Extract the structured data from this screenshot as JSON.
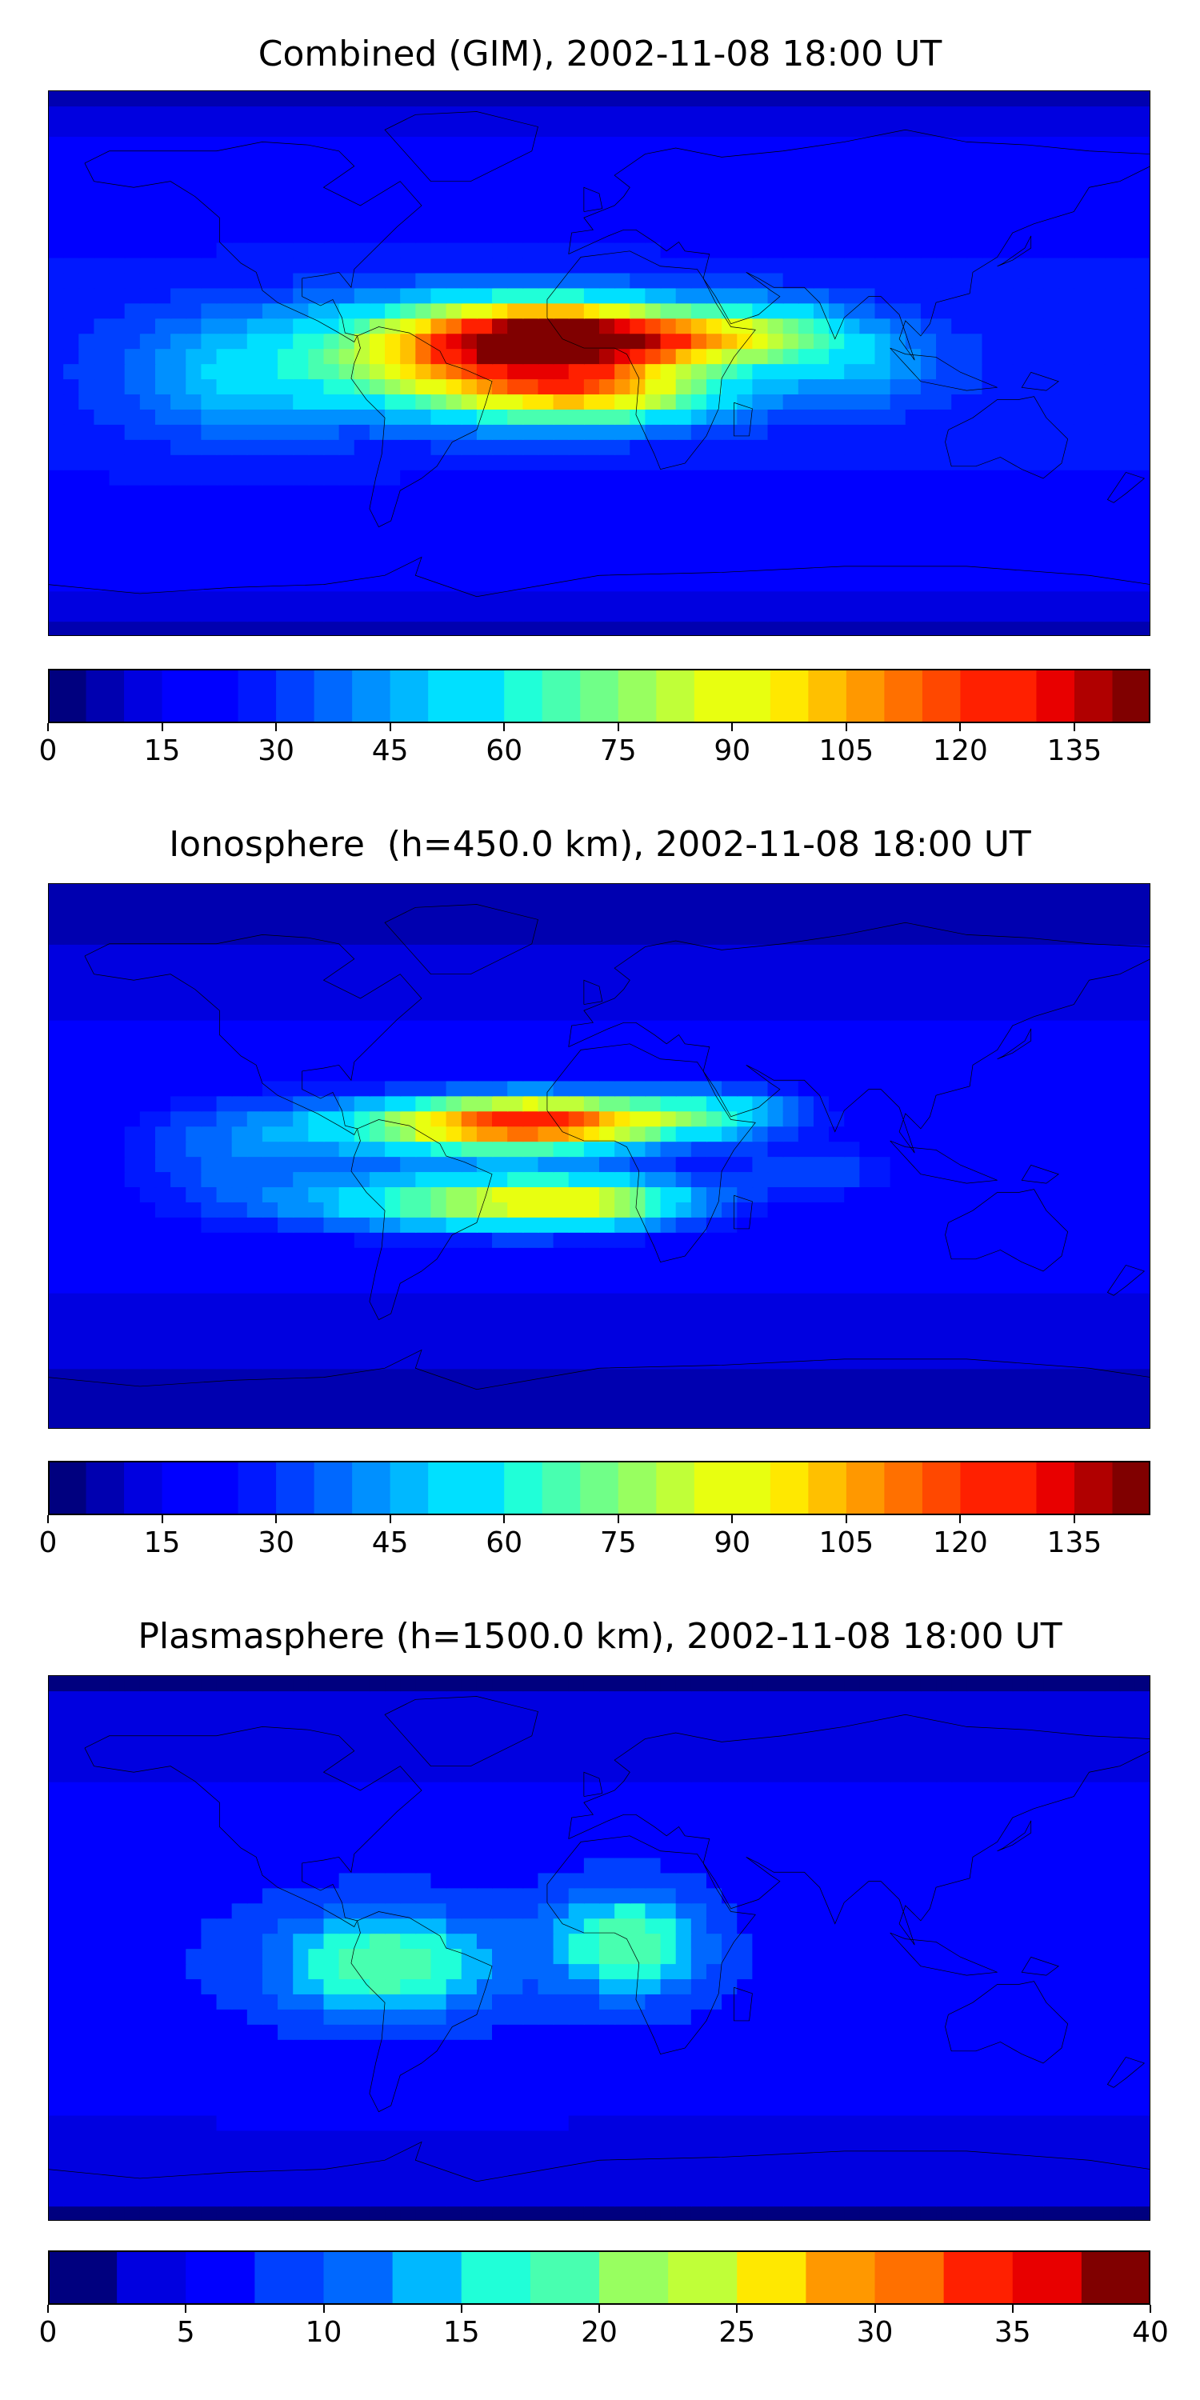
{
  "chart_data": [
    {
      "type": "heatmap",
      "title": "Combined (GIM), 2002-11-08 18:00 UT",
      "colorbar": {
        "min": 0,
        "max": 145,
        "step": 5,
        "tick_labels": [
          "0",
          "15",
          "30",
          "45",
          "60",
          "75",
          "90",
          "105",
          "120",
          "135"
        ]
      },
      "blobs": [
        {
          "lon": -40,
          "lat": 2,
          "value": 100,
          "sx": 40,
          "sy": 12
        },
        {
          "lon": -15,
          "lat": 10,
          "value": 98,
          "sx": 30,
          "sy": 8
        },
        {
          "lon": 0,
          "lat": -10,
          "value": 80,
          "sx": 30,
          "sy": 7
        },
        {
          "lon": 20,
          "lat": 8,
          "value": 70,
          "sx": 25,
          "sy": 6
        },
        {
          "lon": 55,
          "lat": 10,
          "value": 60,
          "sx": 20,
          "sy": 8
        },
        {
          "lon": 85,
          "lat": 0,
          "value": 45,
          "sx": 20,
          "sy": 10
        },
        {
          "lon": -120,
          "lat": -5,
          "value": 45,
          "sx": 25,
          "sy": 15
        }
      ],
      "base": 28
    },
    {
      "type": "heatmap",
      "title": "Ionosphere  (h=450.0 km), 2002-11-08 18:00 UT",
      "colorbar": {
        "min": 0,
        "max": 145,
        "step": 5,
        "tick_labels": [
          "0",
          "15",
          "30",
          "45",
          "60",
          "75",
          "90",
          "105",
          "120",
          "135"
        ]
      },
      "blobs": [
        {
          "lon": -40,
          "lat": 10,
          "value": 78,
          "sx": 40,
          "sy": 7
        },
        {
          "lon": -40,
          "lat": -15,
          "value": 75,
          "sx": 40,
          "sy": 7
        },
        {
          "lon": -15,
          "lat": 12,
          "value": 75,
          "sx": 30,
          "sy": 6
        },
        {
          "lon": 0,
          "lat": -15,
          "value": 55,
          "sx": 25,
          "sy": 6
        },
        {
          "lon": 40,
          "lat": 15,
          "value": 48,
          "sx": 22,
          "sy": 6
        },
        {
          "lon": 70,
          "lat": -5,
          "value": 35,
          "sx": 20,
          "sy": 6
        },
        {
          "lon": -120,
          "lat": 0,
          "value": 35,
          "sx": 25,
          "sy": 15
        }
      ],
      "base": 18
    },
    {
      "type": "heatmap",
      "title": "Plasmasphere (h=1500.0 km), 2002-11-08 18:00 UT",
      "colorbar": {
        "min": 0,
        "max": 40,
        "step": 2.5,
        "tick_labels": [
          "0",
          "5",
          "10",
          "15",
          "20",
          "25",
          "30",
          "35",
          "40"
        ]
      },
      "blobs": [
        {
          "lon": -70,
          "lat": -5,
          "value": 20,
          "sx": 25,
          "sy": 12
        },
        {
          "lon": 10,
          "lat": 2,
          "value": 20,
          "sx": 18,
          "sy": 12
        },
        {
          "lon": 50,
          "lat": 10,
          "value": 6,
          "sx": 25,
          "sy": 15
        }
      ],
      "base": 7
    }
  ]
}
